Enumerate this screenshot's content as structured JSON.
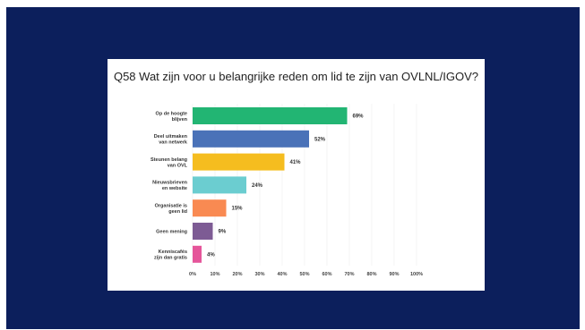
{
  "chart_data": {
    "type": "bar",
    "orientation": "horizontal",
    "title": "Q58 Wat zijn voor u belangrijke reden om lid te zijn van OVLNL/IGOV?",
    "categories": [
      [
        "Op de hoogte",
        "blijven"
      ],
      [
        "Deel uitmaken",
        "van netwerk"
      ],
      [
        "Steunen belang",
        "van OVL"
      ],
      [
        "Nieuwsbrieven",
        "en website"
      ],
      [
        "Organisatie is",
        "geen lid"
      ],
      [
        "Geen mening"
      ],
      [
        "Kenniscafés",
        "zijn dan gratis"
      ]
    ],
    "values": [
      69,
      52,
      41,
      24,
      15,
      9,
      4
    ],
    "value_labels": [
      "69%",
      "52%",
      "41%",
      "24%",
      "15%",
      "9%",
      "4%"
    ],
    "colors": [
      "#22b573",
      "#4a72b8",
      "#f5bd1f",
      "#6bcdd0",
      "#f98a52",
      "#7d5b94",
      "#e5559a"
    ],
    "xlim": [
      0,
      100
    ],
    "xticks": [
      "0%",
      "10%",
      "20%",
      "30%",
      "40%",
      "50%",
      "60%",
      "70%",
      "80%",
      "90%",
      "100%"
    ],
    "grid": true,
    "legend": "none"
  }
}
